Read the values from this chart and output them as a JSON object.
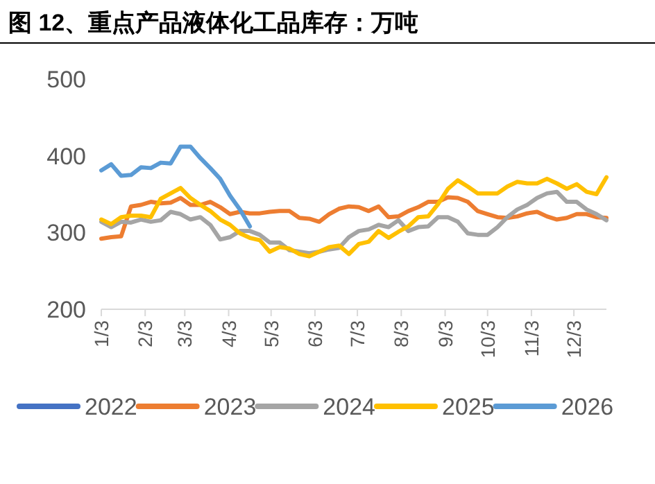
{
  "chart_data": {
    "type": "line",
    "title": "图 12、重点产品液体化工品库存：万吨",
    "x": [
      "--01-03",
      "--01-10",
      "--01-17",
      "--01-24",
      "--01-31",
      "--02-07",
      "--02-14",
      "--02-21",
      "--02-28",
      "--03-07",
      "--03-14",
      "--03-21",
      "--03-28",
      "--04-04",
      "--04-11",
      "--04-18",
      "--04-25",
      "--05-02",
      "--05-09",
      "--05-16",
      "--05-23",
      "--05-30",
      "--06-06",
      "--06-13",
      "--06-20",
      "--06-27",
      "--07-04",
      "--07-11",
      "--07-18",
      "--07-25",
      "--08-01",
      "--08-08",
      "--08-15",
      "--08-22",
      "--08-29",
      "--09-05",
      "--09-12",
      "--09-19",
      "--09-26",
      "--10-03",
      "--10-10",
      "--10-17",
      "--10-24",
      "--10-31",
      "--11-07",
      "--11-14",
      "--11-21",
      "--11-28",
      "--12-05",
      "--12-12",
      "--12-19",
      "--12-26"
    ],
    "xlim": [
      "--01-03",
      "--12-26"
    ],
    "xticks": [
      {
        "value": "--01-03",
        "label": "1/3"
      },
      {
        "value": "--02-03",
        "label": "2/3"
      },
      {
        "value": "--03-03",
        "label": "3/3"
      },
      {
        "value": "--04-03",
        "label": "4/3"
      },
      {
        "value": "--05-03",
        "label": "5/3"
      },
      {
        "value": "--06-03",
        "label": "6/3"
      },
      {
        "value": "--07-03",
        "label": "7/3"
      },
      {
        "value": "--08-03",
        "label": "8/3"
      },
      {
        "value": "--09-03",
        "label": "9/3"
      },
      {
        "value": "--10-03",
        "label": "10/3"
      },
      {
        "value": "--11-03",
        "label": "11/3"
      },
      {
        "value": "--12-03",
        "label": "12/3"
      }
    ],
    "ylim": [
      200,
      500
    ],
    "yticks": [
      200,
      300,
      400,
      500
    ],
    "grid": false,
    "legend": "bottom",
    "line_style": "solid",
    "marker": "none",
    "series": [
      {
        "name": "2022",
        "color": "#4472c4",
        "values": [
          null,
          null,
          null,
          null,
          null,
          null,
          null,
          null,
          null,
          null,
          null,
          null,
          null,
          null,
          null,
          null,
          null,
          null,
          null,
          null,
          null,
          null,
          null,
          null,
          null,
          null,
          null,
          null,
          null,
          null,
          null,
          null,
          null,
          null,
          null,
          null,
          null,
          null,
          null,
          null,
          null,
          null,
          null,
          null,
          null,
          null,
          null,
          null,
          null,
          null,
          null,
          null
        ]
      },
      {
        "name": "2023",
        "color": "#ed7d31",
        "values": [
          292,
          294,
          295,
          334,
          336,
          340,
          338,
          339,
          345,
          336,
          336,
          340,
          333,
          324,
          327,
          325,
          325,
          327,
          328,
          328,
          319,
          318,
          314,
          324,
          331,
          334,
          333,
          328,
          334,
          320,
          321,
          328,
          333,
          340,
          340,
          346,
          345,
          340,
          328,
          324,
          320,
          319,
          321,
          325,
          327,
          321,
          317,
          319,
          324,
          324,
          320,
          319
        ]
      },
      {
        "name": "2024",
        "color": "#a5a5a5",
        "values": [
          314,
          307,
          314,
          313,
          317,
          314,
          316,
          327,
          324,
          317,
          320,
          310,
          291,
          294,
          302,
          302,
          297,
          287,
          287,
          277,
          275,
          273,
          275,
          278,
          280,
          294,
          302,
          304,
          310,
          307,
          316,
          302,
          307,
          308,
          320,
          320,
          314,
          299,
          297,
          297,
          307,
          320,
          330,
          336,
          345,
          351,
          353,
          340,
          340,
          330,
          324,
          316
        ]
      },
      {
        "name": "2025",
        "color": "#ffc000",
        "values": [
          317,
          311,
          320,
          322,
          322,
          320,
          344,
          351,
          358,
          345,
          336,
          328,
          317,
          310,
          299,
          293,
          290,
          275,
          281,
          279,
          272,
          269,
          275,
          281,
          283,
          272,
          285,
          288,
          302,
          293,
          301,
          308,
          320,
          321,
          337,
          357,
          368,
          360,
          351,
          351,
          351,
          360,
          366,
          364,
          364,
          370,
          364,
          357,
          363,
          353,
          350,
          372
        ]
      },
      {
        "name": "2026",
        "color": "#5b9bd5",
        "x": [
          "--01-03",
          "--01-10",
          "--01-17",
          "--01-24",
          "--01-31",
          "--02-07",
          "--02-14",
          "--02-21",
          "--02-28",
          "--03-07",
          "--03-14",
          "--03-21",
          "--03-28",
          "--04-04",
          "--04-11",
          "--04-18"
        ],
        "values": [
          381,
          389,
          374,
          375,
          385,
          384,
          391,
          390,
          412,
          412,
          397,
          384,
          370,
          348,
          330,
          308
        ]
      }
    ]
  }
}
